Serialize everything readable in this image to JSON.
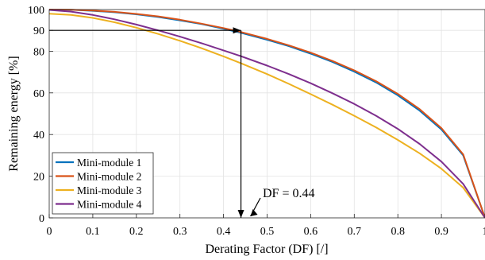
{
  "chart_data": {
    "type": "line",
    "title": "",
    "xlabel": "Derating Factor (DF) [/]",
    "ylabel": "Remaining energy [%]",
    "xlim": [
      0,
      1
    ],
    "ylim": [
      0,
      100
    ],
    "xticks": [
      0,
      0.1,
      0.2,
      0.3,
      0.4,
      0.5,
      0.6,
      0.7,
      0.8,
      0.9,
      1
    ],
    "xtick_labels": [
      "0",
      "0.1",
      "0.2",
      "0.3",
      "0.4",
      "0.5",
      "0.6",
      "0.7",
      "0.8",
      "0.9",
      "1"
    ],
    "yticks": [
      0,
      20,
      40,
      60,
      80,
      90,
      100
    ],
    "ytick_labels": [
      "0",
      "20",
      "40",
      "60",
      "80",
      "90",
      "100"
    ],
    "grid": true,
    "legend_position": "bottom-left",
    "x": [
      0,
      0.05,
      0.1,
      0.15,
      0.2,
      0.25,
      0.3,
      0.35,
      0.4,
      0.44,
      0.5,
      0.55,
      0.6,
      0.65,
      0.7,
      0.75,
      0.8,
      0.85,
      0.9,
      0.95,
      1
    ],
    "series": [
      {
        "name": "Mini-module 1",
        "color": "#0072BD",
        "values": [
          100,
          99.9,
          99.4,
          98.7,
          97.7,
          96.4,
          94.8,
          93.0,
          90.8,
          88.8,
          85.5,
          82.4,
          78.8,
          74.8,
          70.2,
          65.0,
          58.8,
          51.5,
          42.4,
          30.0,
          0
        ]
      },
      {
        "name": "Mini-module 2",
        "color": "#D95319",
        "values": [
          100,
          99.9,
          99.5,
          98.9,
          97.9,
          96.7,
          95.1,
          93.2,
          91.1,
          89.2,
          85.9,
          82.8,
          79.3,
          75.3,
          70.8,
          65.6,
          59.5,
          52.2,
          43.1,
          30.5,
          0
        ]
      },
      {
        "name": "Mini-module 3",
        "color": "#EDB120",
        "values": [
          98,
          97.4,
          96.0,
          93.9,
          91.3,
          88.3,
          85.0,
          81.4,
          77.5,
          74.2,
          69.0,
          64.3,
          59.4,
          54.3,
          49.0,
          43.4,
          37.4,
          31.0,
          23.6,
          14.5,
          0
        ]
      },
      {
        "name": "Mini-module 4",
        "color": "#7E2F8E",
        "values": [
          99.8,
          99.0,
          97.4,
          95.3,
          92.8,
          90.0,
          87.0,
          83.8,
          80.4,
          77.6,
          73.1,
          69.0,
          64.6,
          59.8,
          54.7,
          49.0,
          42.7,
          35.5,
          27.0,
          16.3,
          0
        ]
      }
    ],
    "reference_lines": {
      "x": 0.44,
      "y": 90
    },
    "annotation": {
      "text": "DF = 0.44",
      "x": 0.44,
      "y": 0
    }
  }
}
